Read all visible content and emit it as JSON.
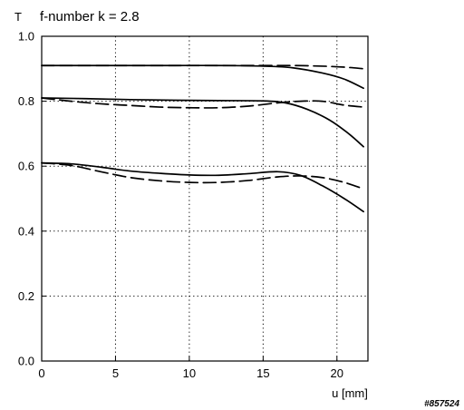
{
  "chart_data": {
    "type": "line",
    "title": "f-number k = 2.8",
    "ylabel": "T",
    "xlabel": "u [mm]",
    "xlim": [
      0,
      22.1
    ],
    "ylim": [
      0,
      1.0
    ],
    "xticks": [
      0,
      5,
      10,
      15,
      20
    ],
    "xtick_labels": [
      "0",
      "5",
      "10",
      "15",
      "20"
    ],
    "yticks": [
      0,
      0.2,
      0.4,
      0.6,
      0.8,
      1.0
    ],
    "ytick_labels": [
      "0.0",
      "0.2",
      "0.4",
      "0.6",
      "0.8",
      "1.0"
    ],
    "grid": true,
    "series": [
      {
        "style": "solid",
        "x": [
          0,
          3,
          6,
          9,
          12,
          15,
          17,
          19,
          20.5,
          21.8
        ],
        "y": [
          0.91,
          0.91,
          0.91,
          0.91,
          0.91,
          0.908,
          0.903,
          0.887,
          0.868,
          0.84
        ]
      },
      {
        "style": "dashed",
        "x": [
          0,
          3,
          6,
          9,
          12,
          15,
          17,
          19,
          20.5,
          21.8
        ],
        "y": [
          0.91,
          0.91,
          0.91,
          0.91,
          0.91,
          0.91,
          0.91,
          0.908,
          0.905,
          0.9
        ]
      },
      {
        "style": "solid",
        "x": [
          0,
          3,
          6,
          9,
          12,
          15,
          16.5,
          18,
          19.5,
          20.8,
          21.8
        ],
        "y": [
          0.81,
          0.808,
          0.805,
          0.803,
          0.802,
          0.801,
          0.795,
          0.775,
          0.742,
          0.7,
          0.66
        ]
      },
      {
        "style": "dashed",
        "x": [
          0,
          2,
          4,
          6,
          8,
          10,
          12,
          14,
          16,
          17.5,
          19,
          20.5,
          21.8
        ],
        "y": [
          0.81,
          0.8,
          0.792,
          0.787,
          0.782,
          0.78,
          0.78,
          0.785,
          0.795,
          0.8,
          0.8,
          0.788,
          0.782
        ]
      },
      {
        "style": "solid",
        "x": [
          0,
          2,
          4,
          6,
          8,
          10,
          12,
          14,
          16,
          17.5,
          19,
          20.5,
          21.8
        ],
        "y": [
          0.61,
          0.607,
          0.597,
          0.585,
          0.578,
          0.573,
          0.572,
          0.577,
          0.583,
          0.572,
          0.54,
          0.5,
          0.46
        ]
      },
      {
        "style": "dashed",
        "x": [
          0,
          2,
          4,
          6,
          8,
          10,
          12,
          14,
          16,
          17.5,
          19,
          20.5,
          21.8
        ],
        "y": [
          0.61,
          0.602,
          0.583,
          0.565,
          0.555,
          0.55,
          0.55,
          0.556,
          0.567,
          0.57,
          0.565,
          0.55,
          0.53
        ]
      }
    ]
  },
  "image_id": "#857524"
}
